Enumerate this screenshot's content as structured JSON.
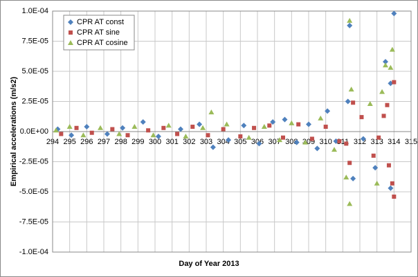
{
  "chart_data": {
    "type": "scatter",
    "x_label": "Day of Year 2013",
    "y_label": "Empirical accelerations (m/s2)",
    "xlim": [
      294,
      315
    ],
    "xticks": [
      294,
      295,
      296,
      297,
      298,
      299,
      300,
      301,
      302,
      303,
      304,
      305,
      306,
      307,
      308,
      309,
      310,
      311,
      312,
      313,
      314,
      315
    ],
    "ylim": [
      -0.0001,
      0.0001
    ],
    "yticks": [
      {
        "value": -0.0001,
        "label": "-1.0E-04"
      },
      {
        "value": -7.5e-05,
        "label": "-7.5E-05"
      },
      {
        "value": -5e-05,
        "label": "-5.0E-05"
      },
      {
        "value": -2.5e-05,
        "label": "-2.5E-05"
      },
      {
        "value": 0,
        "label": "0.0E+00"
      },
      {
        "value": 2.5e-05,
        "label": "2.5E-05"
      },
      {
        "value": 5e-05,
        "label": "5.0E-05"
      },
      {
        "value": 7.5e-05,
        "label": "7.5E-05"
      },
      {
        "value": 0.0001,
        "label": "1.0E-04"
      }
    ],
    "grid": true,
    "legend": "top-left",
    "series": [
      {
        "name": "CPR AT const",
        "color": "#4f81bd",
        "marker": "diamond",
        "x": [
          294.3,
          295.1,
          296.0,
          297.2,
          298.1,
          299.3,
          300.2,
          301.5,
          302.6,
          303.4,
          304.3,
          305.2,
          306.1,
          306.9,
          307.6,
          308.3,
          309.0,
          309.5,
          310.1,
          310.6,
          311.3,
          311.4,
          311.6,
          312.2,
          312.9,
          313.5,
          313.8,
          313.8,
          314.0
        ],
        "values": [
          2e-06,
          -3e-06,
          4e-06,
          -2e-06,
          3e-06,
          8e-06,
          -4e-06,
          2e-06,
          6e-06,
          -1.3e-05,
          -7e-06,
          5e-06,
          -1e-05,
          8e-06,
          1e-05,
          -9e-06,
          6e-06,
          -1.4e-05,
          1.7e-05,
          -8e-06,
          2.5e-05,
          8.8e-05,
          -3.9e-05,
          -6e-06,
          -3e-05,
          5.8e-05,
          -4.7e-05,
          4e-05,
          9.8e-05
        ]
      },
      {
        "name": "CPR AT sine",
        "color": "#c0504d",
        "marker": "square",
        "x": [
          294.5,
          295.4,
          296.3,
          297.5,
          298.4,
          299.6,
          300.5,
          301.3,
          302.2,
          303.1,
          304.0,
          305.0,
          305.8,
          306.7,
          307.5,
          308.4,
          309.2,
          310.0,
          310.8,
          311.2,
          311.4,
          311.6,
          312.1,
          312.8,
          313.1,
          313.4,
          313.6,
          313.7,
          313.9,
          314.0,
          314.0
        ],
        "values": [
          -2e-06,
          3e-06,
          -1e-06,
          2e-06,
          -3e-06,
          1e-06,
          3e-06,
          -2e-06,
          4e-06,
          -3e-06,
          2e-06,
          -4e-06,
          3e-06,
          5e-06,
          -5e-06,
          6e-06,
          -6e-06,
          4e-06,
          -8e-06,
          -1e-05,
          -2.6e-05,
          2.4e-05,
          1.2e-05,
          -2e-05,
          -5e-06,
          1.3e-05,
          2.2e-05,
          -2.8e-05,
          -4.3e-05,
          4.1e-05,
          -5.4e-05
        ]
      },
      {
        "name": "CPR AT cosine",
        "color": "#9bbb59",
        "marker": "triangle",
        "x": [
          294.2,
          295.0,
          295.8,
          296.8,
          297.9,
          298.8,
          299.9,
          300.8,
          301.8,
          302.8,
          303.3,
          304.2,
          305.5,
          306.4,
          307.3,
          308.0,
          308.8,
          309.7,
          310.5,
          311.2,
          311.4,
          311.4,
          311.5,
          312.6,
          313.0,
          313.3,
          313.5,
          313.8,
          313.9
        ],
        "values": [
          1e-06,
          4e-06,
          -3e-06,
          3e-06,
          -2e-06,
          4e-06,
          -3e-06,
          5e-06,
          -4e-06,
          3e-06,
          1.6e-05,
          6e-06,
          -5e-06,
          4e-06,
          -7e-06,
          7e-06,
          -9e-06,
          1.1e-05,
          -1.5e-05,
          -3.8e-05,
          9.2e-05,
          -6e-05,
          3.5e-05,
          2.3e-05,
          -4.3e-05,
          3.3e-05,
          5.5e-05,
          5.3e-05,
          6.8e-05
        ]
      }
    ]
  }
}
